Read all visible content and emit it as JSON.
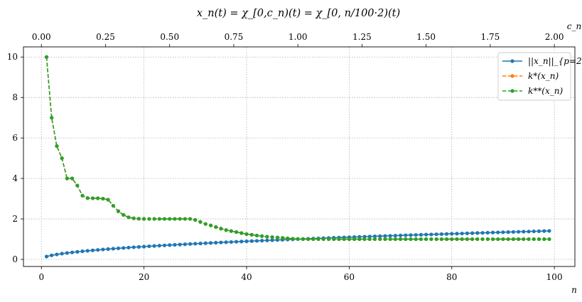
{
  "chart_data": {
    "type": "line",
    "title": "x_n(t) = χ_[0,c_n)(t) = χ_[0, n/100·2)(t)",
    "xlabel": "n",
    "x2label": "c_n",
    "xlim": [
      -3.5,
      104
    ],
    "ylim": [
      -0.35,
      10.5
    ],
    "xticks": [
      0,
      20,
      40,
      60,
      80,
      100
    ],
    "x2ticks": [
      "0.00",
      "0.25",
      "0.50",
      "0.75",
      "1.00",
      "1.25",
      "1.50",
      "1.75",
      "2.00"
    ],
    "x2tick_values": [
      0,
      0.25,
      0.5,
      0.75,
      1.0,
      1.25,
      1.5,
      1.75,
      2.0
    ],
    "yticks": [
      0,
      2,
      4,
      6,
      8,
      10
    ],
    "grid": true,
    "legend_position": "top-right",
    "x": [
      1,
      2,
      3,
      4,
      5,
      6,
      7,
      8,
      9,
      10,
      11,
      12,
      13,
      14,
      15,
      16,
      17,
      18,
      19,
      20,
      21,
      22,
      23,
      24,
      25,
      26,
      27,
      28,
      29,
      30,
      31,
      32,
      33,
      34,
      35,
      36,
      37,
      38,
      39,
      40,
      41,
      42,
      43,
      44,
      45,
      46,
      47,
      48,
      49,
      50,
      51,
      52,
      53,
      54,
      55,
      56,
      57,
      58,
      59,
      60,
      61,
      62,
      63,
      64,
      65,
      66,
      67,
      68,
      69,
      70,
      71,
      72,
      73,
      74,
      75,
      76,
      77,
      78,
      79,
      80,
      81,
      82,
      83,
      84,
      85,
      86,
      87,
      88,
      89,
      90,
      91,
      92,
      93,
      94,
      95,
      96,
      97,
      98,
      99
    ],
    "series": [
      {
        "name": "||x_n||_{p=2}",
        "color": "#1f77b4",
        "style": "solid",
        "values": [
          0.141,
          0.2,
          0.245,
          0.283,
          0.316,
          0.346,
          0.374,
          0.4,
          0.424,
          0.447,
          0.469,
          0.49,
          0.51,
          0.529,
          0.548,
          0.566,
          0.583,
          0.6,
          0.616,
          0.632,
          0.648,
          0.663,
          0.678,
          0.693,
          0.707,
          0.721,
          0.735,
          0.748,
          0.762,
          0.775,
          0.787,
          0.8,
          0.812,
          0.825,
          0.837,
          0.849,
          0.86,
          0.872,
          0.883,
          0.894,
          0.906,
          0.917,
          0.927,
          0.938,
          0.949,
          0.959,
          0.97,
          0.98,
          0.99,
          1.0,
          1.01,
          1.02,
          1.03,
          1.039,
          1.049,
          1.058,
          1.068,
          1.077,
          1.086,
          1.095,
          1.105,
          1.114,
          1.122,
          1.131,
          1.14,
          1.149,
          1.158,
          1.166,
          1.175,
          1.183,
          1.192,
          1.2,
          1.208,
          1.217,
          1.225,
          1.233,
          1.241,
          1.249,
          1.257,
          1.265,
          1.273,
          1.281,
          1.288,
          1.296,
          1.304,
          1.311,
          1.319,
          1.327,
          1.334,
          1.342,
          1.349,
          1.356,
          1.364,
          1.371,
          1.378,
          1.386,
          1.393,
          1.4,
          1.407
        ]
      },
      {
        "name": "k*(x_n)",
        "color": "#ff7f0e",
        "style": "dashed",
        "values": [
          10,
          7,
          5.6,
          5,
          4,
          4,
          3.65,
          3.15,
          3.03,
          3.02,
          3.02,
          3.0,
          2.95,
          2.65,
          2.38,
          2.2,
          2.08,
          2.03,
          2.01,
          2.0,
          2.0,
          2.0,
          2.0,
          2.0,
          2.0,
          2.0,
          2.0,
          2.0,
          2.0,
          1.95,
          1.85,
          1.75,
          1.68,
          1.6,
          1.52,
          1.45,
          1.4,
          1.35,
          1.3,
          1.25,
          1.22,
          1.18,
          1.15,
          1.12,
          1.1,
          1.08,
          1.06,
          1.04,
          1.02,
          1.01,
          1.0,
          1.0,
          1.0,
          1.0,
          1.0,
          1.0,
          1.0,
          1.0,
          1.0,
          1.0,
          1.0,
          1.0,
          1.0,
          1.0,
          1.0,
          1.0,
          1.0,
          1.0,
          1.0,
          1.0,
          1.0,
          1.0,
          1.0,
          1.0,
          1.0,
          1.0,
          1.0,
          1.0,
          1.0,
          1.0,
          1.0,
          1.0,
          1.0,
          1.0,
          1.0,
          1.0,
          1.0,
          1.0,
          1.0,
          1.0,
          1.0,
          1.0,
          1.0,
          1.0,
          1.0,
          1.0,
          1.0,
          1.0,
          1.0
        ]
      },
      {
        "name": "k**(x_n)",
        "color": "#2ca02c",
        "style": "dashed",
        "values": [
          10,
          7,
          5.6,
          5,
          4,
          4,
          3.65,
          3.15,
          3.03,
          3.02,
          3.02,
          3.0,
          2.95,
          2.65,
          2.38,
          2.2,
          2.08,
          2.03,
          2.01,
          2.0,
          2.0,
          2.0,
          2.0,
          2.0,
          2.0,
          2.0,
          2.0,
          2.0,
          2.0,
          1.95,
          1.85,
          1.75,
          1.68,
          1.6,
          1.52,
          1.45,
          1.4,
          1.35,
          1.3,
          1.25,
          1.22,
          1.18,
          1.15,
          1.12,
          1.1,
          1.08,
          1.06,
          1.04,
          1.02,
          1.01,
          1.0,
          1.0,
          1.0,
          1.0,
          1.0,
          1.0,
          1.0,
          1.0,
          1.0,
          1.0,
          1.0,
          1.0,
          1.0,
          1.0,
          1.0,
          1.0,
          1.0,
          1.0,
          1.0,
          1.0,
          1.0,
          1.0,
          1.0,
          1.0,
          1.0,
          1.0,
          1.0,
          1.0,
          1.0,
          1.0,
          1.0,
          1.0,
          1.0,
          1.0,
          1.0,
          1.0,
          1.0,
          1.0,
          1.0,
          1.0,
          1.0,
          1.0,
          1.0,
          1.0,
          1.0,
          1.0,
          1.0,
          1.0,
          1.0
        ]
      }
    ]
  }
}
